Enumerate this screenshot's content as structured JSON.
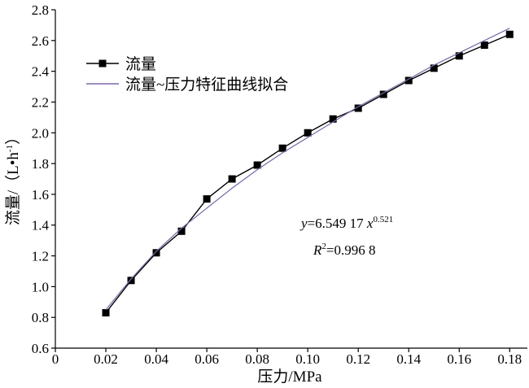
{
  "chart_data": {
    "type": "line",
    "x": [
      0.02,
      0.03,
      0.04,
      0.05,
      0.06,
      0.07,
      0.08,
      0.09,
      0.1,
      0.11,
      0.12,
      0.13,
      0.14,
      0.15,
      0.16,
      0.17,
      0.18
    ],
    "series": [
      {
        "name": "流量",
        "color": "#000000",
        "marker": "square",
        "values": [
          0.83,
          1.04,
          1.22,
          1.36,
          1.57,
          1.7,
          1.79,
          1.9,
          2.0,
          2.09,
          2.16,
          2.25,
          2.34,
          2.42,
          2.5,
          2.57,
          2.64
        ]
      },
      {
        "name": "流量~压力特征曲线拟合",
        "color": "#7b68a8",
        "values": [
          0.85,
          1.05,
          1.23,
          1.38,
          1.51,
          1.64,
          1.76,
          1.87,
          1.97,
          2.07,
          2.17,
          2.26,
          2.35,
          2.44,
          2.52,
          2.6,
          2.68
        ]
      }
    ],
    "x_label": "压力/MPa",
    "y_label": [
      "流量/（L•h",
      "-1",
      "）"
    ],
    "annotations": [
      [
        "y",
        "=6.549 17 ",
        "x",
        "0.521"
      ],
      [
        "R",
        "2",
        "=0.996 8"
      ]
    ],
    "xlim": [
      0,
      0.187
    ],
    "ylim": [
      0.6,
      2.8
    ],
    "xticks": [
      0,
      0.02,
      0.04,
      0.06,
      0.08,
      {
        "value": 0.1,
        "label": "0.10"
      },
      0.12,
      0.14,
      0.16,
      0.18
    ],
    "yticks": [
      0.6,
      0.8,
      {
        "value": 1,
        "label": "1.0"
      },
      1.2,
      1.4,
      1.6,
      1.8,
      {
        "value": 2,
        "label": "2.0"
      },
      2.2,
      2.4,
      2.6,
      2.8
    ],
    "legend": "upper left",
    "grid": false
  }
}
